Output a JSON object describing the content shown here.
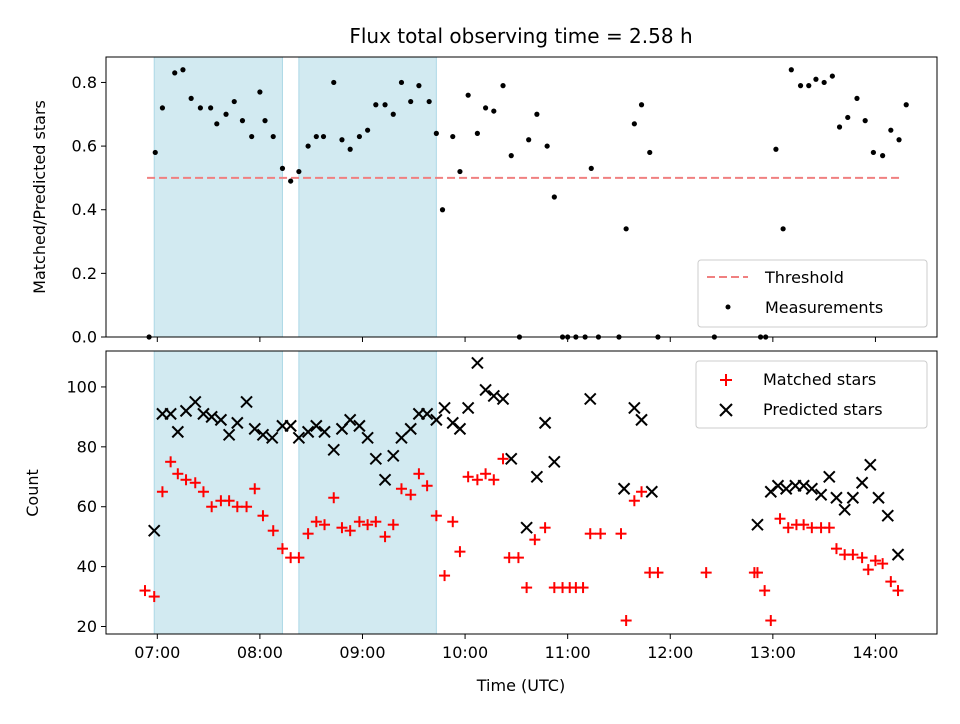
{
  "chart_data": [
    {
      "type": "scatter",
      "title": "Flux total observing time = 2.58 h",
      "ylabel": "Matched/Predicted stars",
      "xlabel": "",
      "ylim": [
        0,
        0.88
      ],
      "yticks": [
        "0.0",
        "0.2",
        "0.4",
        "0.6",
        "0.8"
      ],
      "ytick_values": [
        0.0,
        0.2,
        0.4,
        0.6,
        0.8
      ],
      "xlim_hours": [
        6.5,
        14.6
      ],
      "shaded_intervals_hours": [
        [
          6.97,
          8.22
        ],
        [
          8.38,
          9.72
        ]
      ],
      "shade_color": "#add8e6",
      "threshold": {
        "name": "Threshold",
        "value": 0.5,
        "x_range_hours": [
          6.9,
          14.23
        ],
        "color": "#f08080"
      },
      "measurements": {
        "name": "Measurements",
        "color": "#000000",
        "points": [
          [
            6.92,
            0.0
          ],
          [
            6.98,
            0.58
          ],
          [
            7.05,
            0.72
          ],
          [
            7.17,
            0.83
          ],
          [
            7.25,
            0.84
          ],
          [
            7.33,
            0.75
          ],
          [
            7.42,
            0.72
          ],
          [
            7.52,
            0.72
          ],
          [
            7.58,
            0.67
          ],
          [
            7.67,
            0.7
          ],
          [
            7.75,
            0.74
          ],
          [
            7.83,
            0.68
          ],
          [
            7.92,
            0.63
          ],
          [
            8.0,
            0.77
          ],
          [
            8.05,
            0.68
          ],
          [
            8.13,
            0.63
          ],
          [
            8.22,
            0.53
          ],
          [
            8.3,
            0.49
          ],
          [
            8.38,
            0.52
          ],
          [
            8.47,
            0.6
          ],
          [
            8.55,
            0.63
          ],
          [
            8.62,
            0.63
          ],
          [
            8.72,
            0.8
          ],
          [
            8.8,
            0.62
          ],
          [
            8.88,
            0.59
          ],
          [
            8.97,
            0.63
          ],
          [
            9.05,
            0.65
          ],
          [
            9.13,
            0.73
          ],
          [
            9.22,
            0.73
          ],
          [
            9.3,
            0.7
          ],
          [
            9.38,
            0.8
          ],
          [
            9.47,
            0.74
          ],
          [
            9.55,
            0.79
          ],
          [
            9.65,
            0.74
          ],
          [
            9.72,
            0.64
          ],
          [
            9.78,
            0.4
          ],
          [
            9.88,
            0.63
          ],
          [
            9.95,
            0.52
          ],
          [
            10.03,
            0.76
          ],
          [
            10.12,
            0.64
          ],
          [
            10.2,
            0.72
          ],
          [
            10.28,
            0.71
          ],
          [
            10.37,
            0.79
          ],
          [
            10.45,
            0.57
          ],
          [
            10.53,
            0.0
          ],
          [
            10.62,
            0.62
          ],
          [
            10.7,
            0.7
          ],
          [
            10.8,
            0.6
          ],
          [
            10.87,
            0.44
          ],
          [
            10.95,
            0.0
          ],
          [
            11.0,
            0.0
          ],
          [
            11.08,
            0.0
          ],
          [
            11.17,
            0.0
          ],
          [
            11.23,
            0.53
          ],
          [
            11.3,
            0.0
          ],
          [
            11.5,
            0.0
          ],
          [
            11.57,
            0.34
          ],
          [
            11.65,
            0.67
          ],
          [
            11.72,
            0.73
          ],
          [
            11.8,
            0.58
          ],
          [
            11.88,
            0.0
          ],
          [
            12.43,
            0.0
          ],
          [
            12.88,
            0.0
          ],
          [
            12.93,
            0.0
          ],
          [
            13.03,
            0.59
          ],
          [
            13.1,
            0.34
          ],
          [
            13.18,
            0.84
          ],
          [
            13.27,
            0.79
          ],
          [
            13.35,
            0.79
          ],
          [
            13.42,
            0.81
          ],
          [
            13.5,
            0.8
          ],
          [
            13.58,
            0.82
          ],
          [
            13.65,
            0.66
          ],
          [
            13.73,
            0.69
          ],
          [
            13.82,
            0.75
          ],
          [
            13.9,
            0.68
          ],
          [
            13.98,
            0.58
          ],
          [
            14.07,
            0.57
          ],
          [
            14.15,
            0.65
          ],
          [
            14.23,
            0.62
          ],
          [
            14.3,
            0.73
          ]
        ]
      },
      "legend_placement": "lower-right"
    },
    {
      "type": "scatter",
      "xlabel": "Time (UTC)",
      "ylabel": "Count",
      "ylim": [
        17.5,
        112
      ],
      "yticks": [
        "20",
        "40",
        "60",
        "80",
        "100"
      ],
      "ytick_values": [
        20,
        40,
        60,
        80,
        100
      ],
      "xlim_hours": [
        6.5,
        14.6
      ],
      "xticks": [
        "07:00",
        "08:00",
        "09:00",
        "10:00",
        "11:00",
        "12:00",
        "13:00",
        "14:00"
      ],
      "xtick_values_hours": [
        7,
        8,
        9,
        10,
        11,
        12,
        13,
        14
      ],
      "shaded_intervals_hours": [
        [
          6.97,
          8.22
        ],
        [
          8.38,
          9.72
        ]
      ],
      "shade_color": "#add8e6",
      "legend_placement": "top-right",
      "series": [
        {
          "name": "Matched stars",
          "marker": "plus",
          "color": "#ff0000",
          "points": [
            [
              6.88,
              32
            ],
            [
              6.97,
              30
            ],
            [
              7.05,
              65
            ],
            [
              7.13,
              75
            ],
            [
              7.2,
              71
            ],
            [
              7.28,
              69
            ],
            [
              7.37,
              68
            ],
            [
              7.45,
              65
            ],
            [
              7.53,
              60
            ],
            [
              7.62,
              62
            ],
            [
              7.7,
              62
            ],
            [
              7.78,
              60
            ],
            [
              7.87,
              60
            ],
            [
              7.95,
              66
            ],
            [
              8.03,
              57
            ],
            [
              8.13,
              52
            ],
            [
              8.22,
              46
            ],
            [
              8.3,
              43
            ],
            [
              8.38,
              43
            ],
            [
              8.47,
              51
            ],
            [
              8.55,
              55
            ],
            [
              8.63,
              54
            ],
            [
              8.72,
              63
            ],
            [
              8.8,
              53
            ],
            [
              8.88,
              52
            ],
            [
              8.97,
              55
            ],
            [
              9.05,
              54
            ],
            [
              9.13,
              55
            ],
            [
              9.22,
              50
            ],
            [
              9.3,
              54
            ],
            [
              9.38,
              66
            ],
            [
              9.47,
              64
            ],
            [
              9.55,
              71
            ],
            [
              9.63,
              67
            ],
            [
              9.72,
              57
            ],
            [
              9.8,
              37
            ],
            [
              9.88,
              55
            ],
            [
              9.95,
              45
            ],
            [
              10.03,
              70
            ],
            [
              10.12,
              69
            ],
            [
              10.2,
              71
            ],
            [
              10.28,
              69
            ],
            [
              10.37,
              76
            ],
            [
              10.43,
              43
            ],
            [
              10.52,
              43
            ],
            [
              10.6,
              33
            ],
            [
              10.68,
              49
            ],
            [
              10.78,
              53
            ],
            [
              10.87,
              33
            ],
            [
              10.95,
              33
            ],
            [
              11.02,
              33
            ],
            [
              11.08,
              33
            ],
            [
              11.15,
              33
            ],
            [
              11.22,
              51
            ],
            [
              11.32,
              51
            ],
            [
              11.52,
              51
            ],
            [
              11.57,
              22
            ],
            [
              11.65,
              62
            ],
            [
              11.72,
              65
            ],
            [
              11.8,
              38
            ],
            [
              11.88,
              38
            ],
            [
              12.35,
              38
            ],
            [
              12.82,
              38
            ],
            [
              12.85,
              38
            ],
            [
              12.92,
              32
            ],
            [
              12.98,
              22
            ],
            [
              13.07,
              56
            ],
            [
              13.15,
              53
            ],
            [
              13.23,
              54
            ],
            [
              13.3,
              54
            ],
            [
              13.38,
              53
            ],
            [
              13.47,
              53
            ],
            [
              13.55,
              53
            ],
            [
              13.62,
              46
            ],
            [
              13.7,
              44
            ],
            [
              13.78,
              44
            ],
            [
              13.87,
              43
            ],
            [
              13.93,
              39
            ],
            [
              14.0,
              42
            ],
            [
              14.07,
              41
            ],
            [
              14.15,
              35
            ],
            [
              14.22,
              32
            ]
          ]
        },
        {
          "name": "Predicted stars",
          "marker": "x",
          "color": "#000000",
          "points": [
            [
              6.97,
              52
            ],
            [
              7.05,
              91
            ],
            [
              7.13,
              91
            ],
            [
              7.2,
              85
            ],
            [
              7.28,
              92
            ],
            [
              7.37,
              95
            ],
            [
              7.45,
              91
            ],
            [
              7.53,
              90
            ],
            [
              7.62,
              89
            ],
            [
              7.7,
              84
            ],
            [
              7.78,
              88
            ],
            [
              7.87,
              95
            ],
            [
              7.95,
              86
            ],
            [
              8.03,
              84
            ],
            [
              8.12,
              83
            ],
            [
              8.22,
              87
            ],
            [
              8.3,
              87
            ],
            [
              8.38,
              83
            ],
            [
              8.47,
              85
            ],
            [
              8.55,
              87
            ],
            [
              8.63,
              85
            ],
            [
              8.72,
              79
            ],
            [
              8.8,
              86
            ],
            [
              8.88,
              89
            ],
            [
              8.97,
              87
            ],
            [
              9.05,
              83
            ],
            [
              9.13,
              76
            ],
            [
              9.22,
              69
            ],
            [
              9.3,
              77
            ],
            [
              9.38,
              83
            ],
            [
              9.47,
              86
            ],
            [
              9.55,
              91
            ],
            [
              9.63,
              91
            ],
            [
              9.72,
              89
            ],
            [
              9.8,
              93
            ],
            [
              9.88,
              88
            ],
            [
              9.95,
              86
            ],
            [
              10.03,
              93
            ],
            [
              10.12,
              108
            ],
            [
              10.2,
              99
            ],
            [
              10.28,
              97
            ],
            [
              10.37,
              96
            ],
            [
              10.45,
              76
            ],
            [
              10.6,
              53
            ],
            [
              10.7,
              70
            ],
            [
              10.78,
              88
            ],
            [
              10.87,
              75
            ],
            [
              11.22,
              96
            ],
            [
              11.55,
              66
            ],
            [
              11.65,
              93
            ],
            [
              11.72,
              89
            ],
            [
              11.82,
              65
            ],
            [
              12.85,
              54
            ],
            [
              12.98,
              65
            ],
            [
              13.05,
              67
            ],
            [
              13.13,
              66
            ],
            [
              13.22,
              67
            ],
            [
              13.3,
              67
            ],
            [
              13.38,
              66
            ],
            [
              13.47,
              64
            ],
            [
              13.55,
              70
            ],
            [
              13.62,
              63
            ],
            [
              13.7,
              59
            ],
            [
              13.78,
              63
            ],
            [
              13.87,
              68
            ],
            [
              13.95,
              74
            ],
            [
              14.03,
              63
            ],
            [
              14.12,
              57
            ],
            [
              14.22,
              44
            ]
          ]
        }
      ]
    }
  ]
}
